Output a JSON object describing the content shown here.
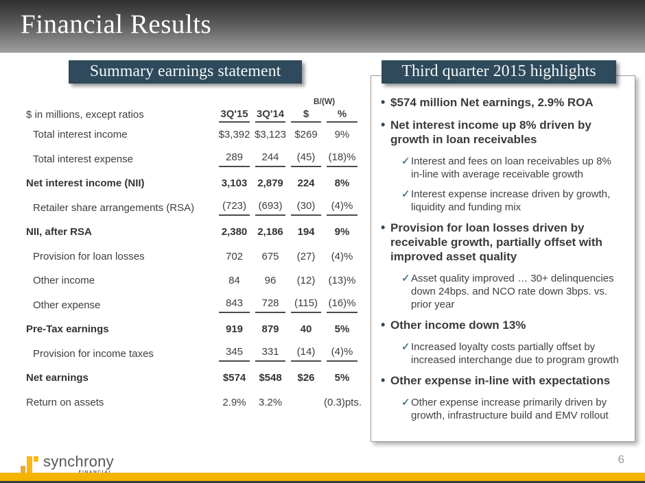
{
  "slide": {
    "title": "Financial Results",
    "page_number": "6"
  },
  "colors": {
    "accent_teal": "#2e4a5c",
    "check_teal": "#4e7d92",
    "brand_gold": "#f5b400"
  },
  "glyphs": {
    "bullet": "•",
    "check": "✓"
  },
  "left_panel": {
    "title": "Summary earnings statement",
    "table": {
      "caption": "$ in millions, except ratios",
      "bw_label": "B/(W)",
      "columns": [
        "3Q'15",
        "3Q'14",
        "$",
        "%"
      ],
      "rows": [
        {
          "label": "Total interest income",
          "values": [
            "$3,392",
            "$3,123",
            "$269",
            "9%"
          ],
          "bold": false,
          "indent": true,
          "rule_after": false
        },
        {
          "label": "Total interest expense",
          "values": [
            "289",
            "244",
            "(45)",
            "(18)%"
          ],
          "bold": false,
          "indent": true,
          "rule_after": true
        },
        {
          "label": "Net interest income (NII)",
          "values": [
            "3,103",
            "2,879",
            "224",
            "8%"
          ],
          "bold": true,
          "indent": false,
          "rule_after": false
        },
        {
          "label": "Retailer share arrangements (RSA)",
          "values": [
            "(723)",
            "(693)",
            "(30)",
            "(4)%"
          ],
          "bold": false,
          "indent": true,
          "rule_after": true
        },
        {
          "label": "NII, after RSA",
          "values": [
            "2,380",
            "2,186",
            "194",
            "9%"
          ],
          "bold": true,
          "indent": false,
          "rule_after": false
        },
        {
          "label": "Provision for loan losses",
          "values": [
            "702",
            "675",
            "(27)",
            "(4)%"
          ],
          "bold": false,
          "indent": true,
          "rule_after": false
        },
        {
          "label": "Other income",
          "values": [
            "84",
            "96",
            "(12)",
            "(13)%"
          ],
          "bold": false,
          "indent": true,
          "rule_after": false
        },
        {
          "label": "Other expense",
          "values": [
            "843",
            "728",
            "(115)",
            "(16)%"
          ],
          "bold": false,
          "indent": true,
          "rule_after": true
        },
        {
          "label": "Pre-Tax earnings",
          "values": [
            "919",
            "879",
            "40",
            "5%"
          ],
          "bold": true,
          "indent": false,
          "rule_after": false
        },
        {
          "label": "Provision for income taxes",
          "values": [
            "345",
            "331",
            "(14)",
            "(4)%"
          ],
          "bold": false,
          "indent": true,
          "rule_after": true
        },
        {
          "label": "Net earnings",
          "values": [
            "$574",
            "$548",
            "$26",
            "5%"
          ],
          "bold": true,
          "indent": false,
          "rule_after": false
        },
        {
          "label": "Return on assets",
          "values": [
            "2.9%",
            "3.2%",
            "",
            "(0.3)pts."
          ],
          "bold": false,
          "indent": false,
          "rule_after": false
        }
      ]
    }
  },
  "right_panel": {
    "title": "Third quarter 2015 highlights",
    "items": [
      {
        "type": "bullet",
        "text": "$574 million Net earnings, 2.9% ROA"
      },
      {
        "type": "bullet",
        "text": "Net interest income up 8% driven by growth in loan receivables"
      },
      {
        "type": "check",
        "text": "Interest and fees on loan receivables up 8% in-line with average receivable growth"
      },
      {
        "type": "check",
        "text": "Interest expense increase driven by growth, liquidity and funding mix"
      },
      {
        "type": "bullet",
        "text": "Provision for loan losses driven by receivable growth, partially offset with improved asset quality"
      },
      {
        "type": "check",
        "text": "Asset quality improved … 30+ delinquencies down 24bps. and NCO rate down 3bps. vs. prior year"
      },
      {
        "type": "bullet",
        "text": "Other income down 13%"
      },
      {
        "type": "check",
        "text": "Increased loyalty costs partially offset by increased interchange due to program growth"
      },
      {
        "type": "bullet",
        "text": "Other expense in-line with expectations"
      },
      {
        "type": "check",
        "text": "Other expense increase primarily driven by growth, infrastructure build and EMV rollout"
      }
    ]
  },
  "footer": {
    "logo_text": "synchrony",
    "logo_subtext": "FINANCIAL"
  }
}
